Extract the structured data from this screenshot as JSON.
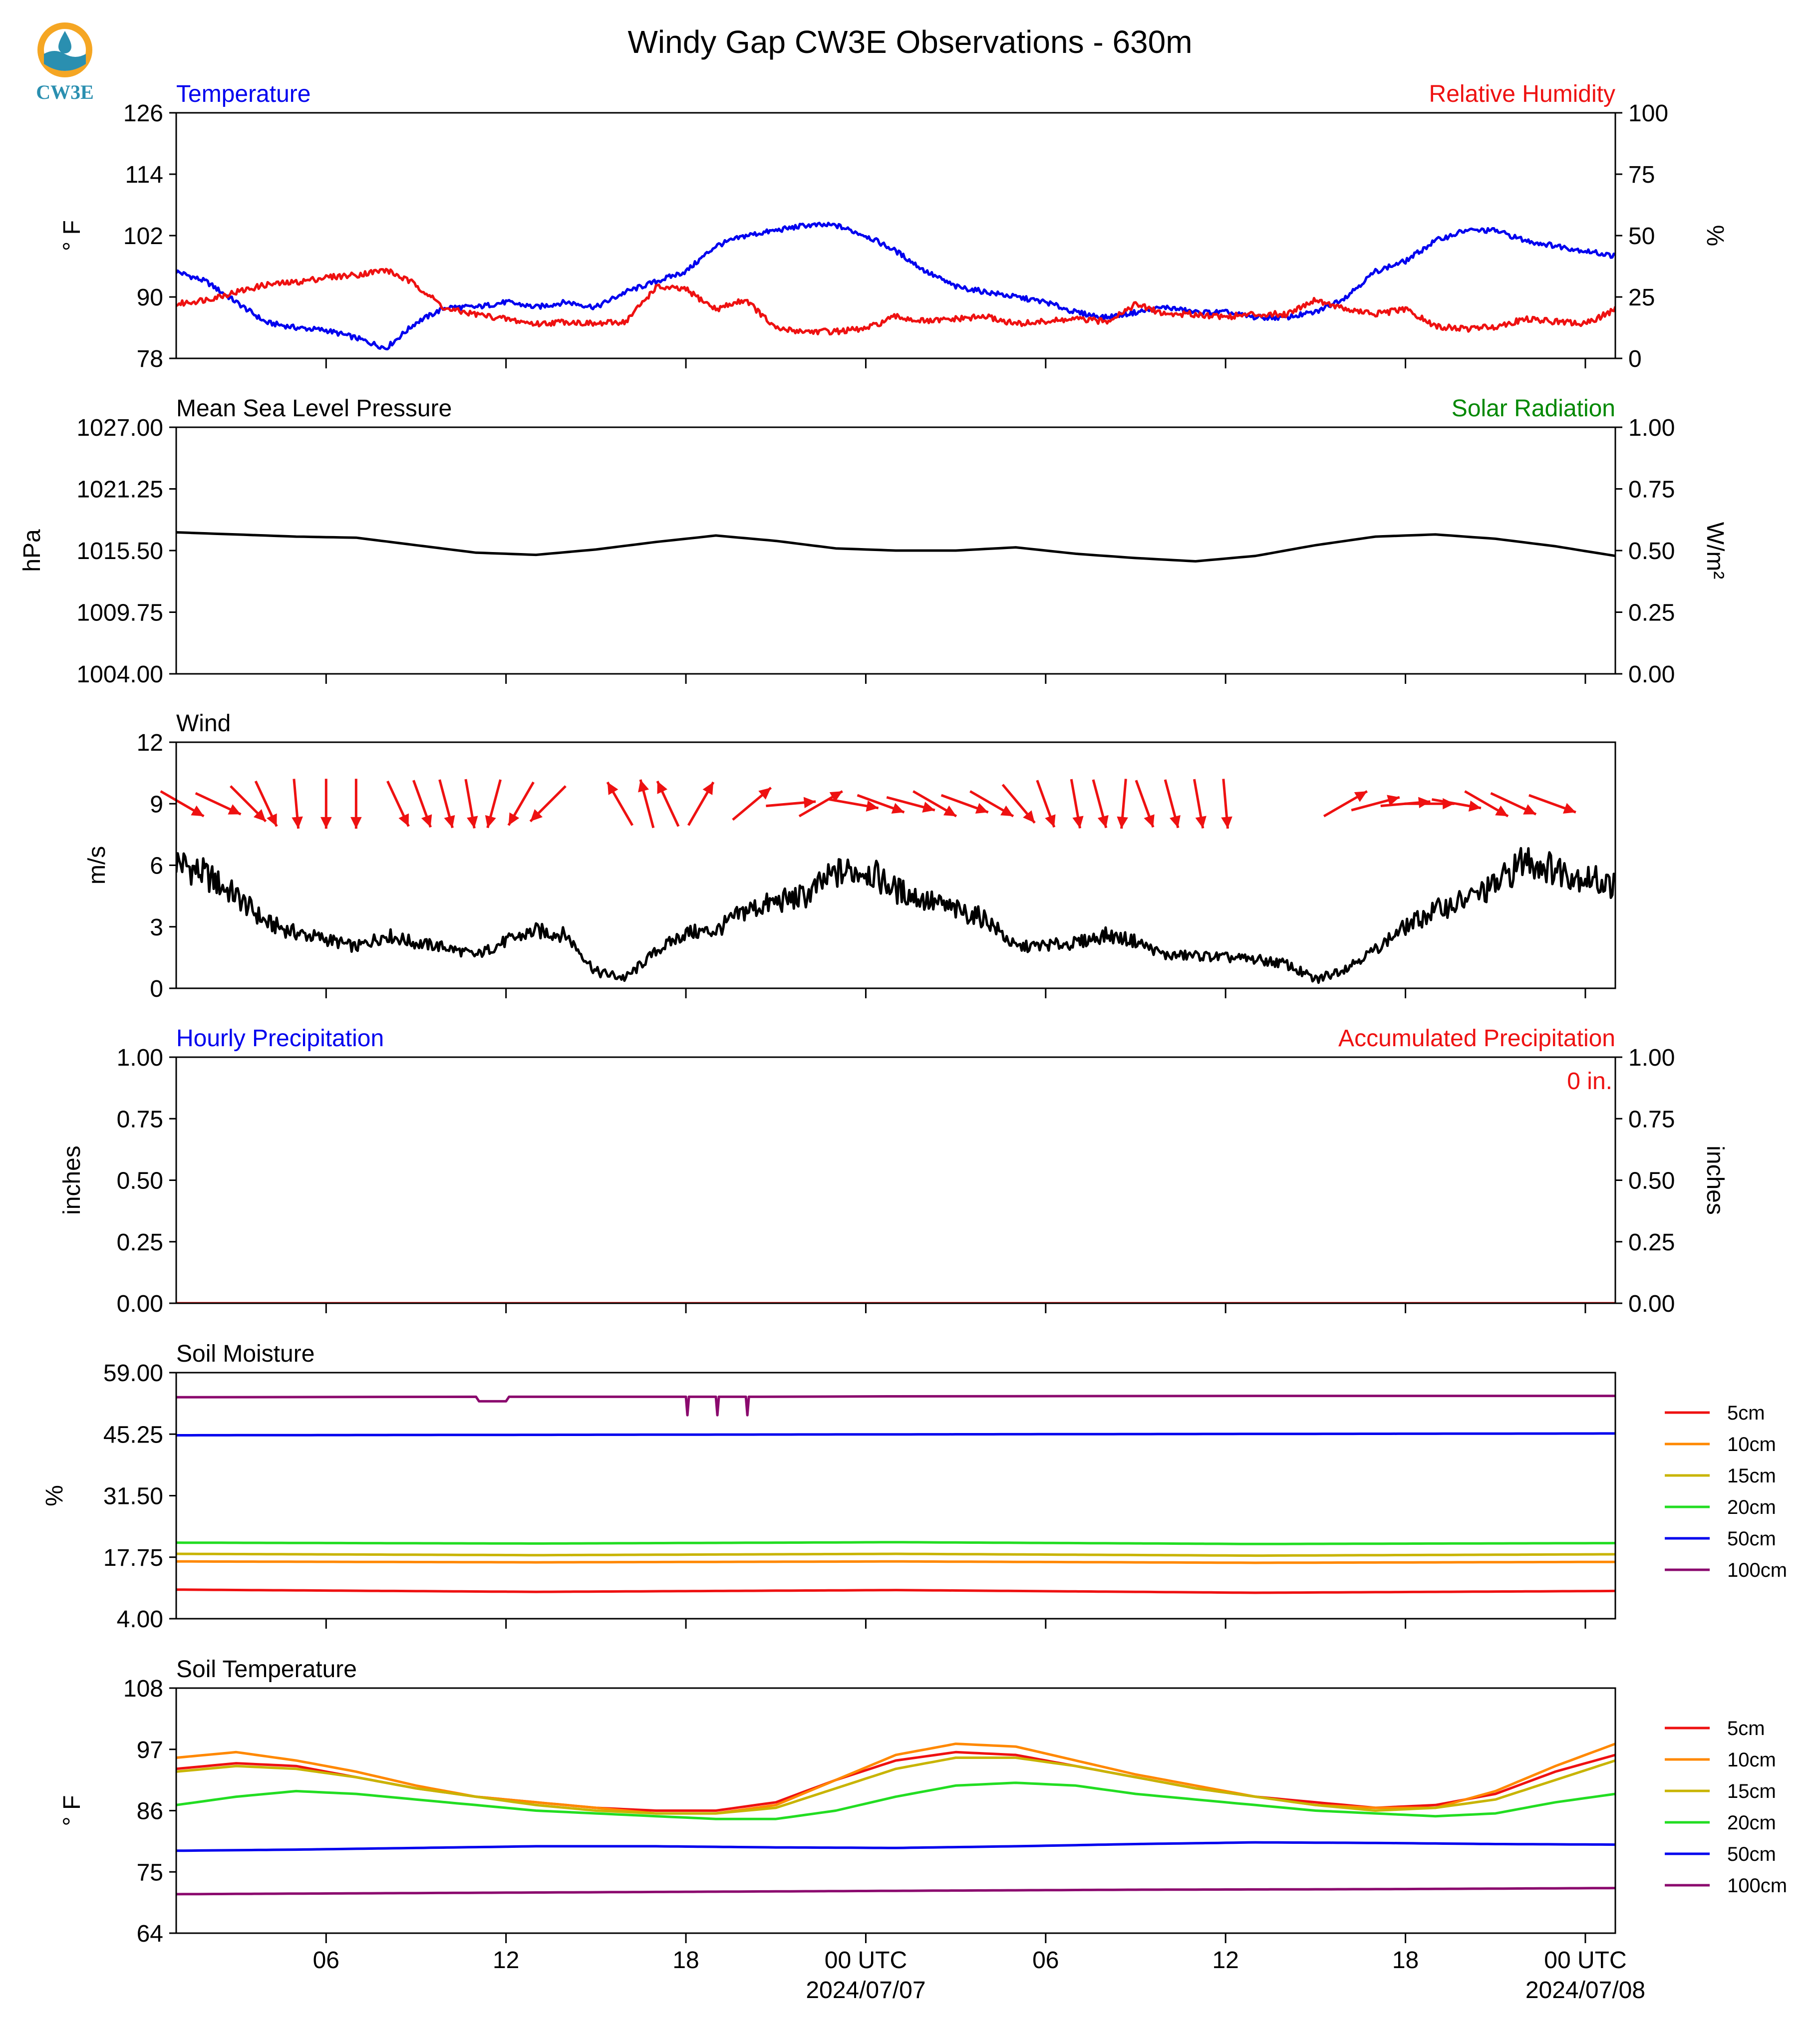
{
  "page_title": "Windy Gap CW3E Observations - 630m",
  "logo_text": "CW3E",
  "colors": {
    "blue": "#0000ee",
    "red": "#ee1111",
    "green": "#008800",
    "black": "#000000",
    "logo_teal": "#2a8fb0",
    "logo_orange": "#f5a623"
  },
  "x_axis": {
    "start_hour": 0,
    "end_hour": 48,
    "ticks": [
      {
        "hour": 5,
        "label": "06"
      },
      {
        "hour": 11,
        "label": "12"
      },
      {
        "hour": 17,
        "label": "18"
      },
      {
        "hour": 23,
        "label": "00 UTC",
        "sub": "2024/07/07"
      },
      {
        "hour": 29,
        "label": "06"
      },
      {
        "hour": 35,
        "label": "12"
      },
      {
        "hour": 41,
        "label": "18"
      },
      {
        "hour": 47,
        "label": "00 UTC",
        "sub": "2024/07/08"
      }
    ]
  },
  "chart_data": [
    {
      "type": "line",
      "title": "Temperature",
      "right_title": "Relative Humidity",
      "ylabel": "° F",
      "ylabel_right": "%",
      "ylim": [
        78,
        126
      ],
      "yticks": [
        "126",
        "114",
        "102",
        "90",
        "78"
      ],
      "ylim_right": [
        0,
        100
      ],
      "yticks_right": [
        "100",
        "75",
        "50",
        "25",
        "0"
      ],
      "series": [
        {
          "name": "Temperature",
          "color": "#0000ee",
          "axis": "left",
          "x": [
            0,
            1,
            2,
            3,
            4,
            5,
            6,
            7,
            8,
            9,
            10,
            11,
            12,
            13,
            14,
            15,
            16,
            17,
            18,
            19,
            20,
            21,
            22,
            23,
            24,
            25,
            26,
            27,
            28,
            29,
            30,
            31,
            32,
            33,
            34,
            35,
            36,
            37,
            38,
            39,
            40,
            41,
            42,
            43,
            44,
            45,
            46,
            47,
            48
          ],
          "y": [
            95,
            93,
            89,
            85,
            84,
            83.5,
            82,
            80,
            85,
            88,
            88,
            89,
            88,
            89,
            88,
            91,
            93,
            95,
            100,
            102,
            103,
            104,
            104,
            102,
            99,
            95,
            92,
            91,
            90,
            89,
            87,
            86,
            87,
            88,
            87,
            87,
            86,
            86,
            87,
            90,
            95,
            97,
            101,
            103,
            103,
            101,
            100,
            99,
            98
          ]
        },
        {
          "name": "Relative Humidity",
          "color": "#ee1111",
          "axis": "right",
          "x": [
            0,
            1,
            2,
            3,
            4,
            5,
            6,
            7,
            8,
            9,
            10,
            11,
            12,
            13,
            14,
            15,
            16,
            17,
            18,
            19,
            20,
            21,
            22,
            23,
            24,
            25,
            26,
            27,
            28,
            29,
            30,
            31,
            32,
            33,
            34,
            35,
            36,
            37,
            38,
            39,
            40,
            41,
            42,
            43,
            44,
            45,
            46,
            47,
            48
          ],
          "y": [
            22,
            24,
            27,
            30,
            31,
            33,
            34,
            36,
            30,
            20,
            18,
            16,
            14,
            15,
            14,
            15,
            29,
            28,
            20,
            24,
            12,
            11,
            11,
            12,
            17,
            15,
            16,
            17,
            14,
            15,
            16,
            15,
            22,
            18,
            18,
            17,
            18,
            18,
            24,
            20,
            18,
            20,
            13,
            12,
            13,
            16,
            15,
            14,
            20
          ]
        }
      ]
    },
    {
      "type": "line",
      "title": "Mean Sea Level Pressure",
      "right_title": "Solar Radiation",
      "ylabel": "hPa",
      "ylabel_right": "W/m²",
      "ylim": [
        1004,
        1027
      ],
      "yticks": [
        "1027.00",
        "1021.25",
        "1015.50",
        "1009.75",
        "1004.00"
      ],
      "ylim_right": [
        0,
        1
      ],
      "yticks_right": [
        "1.00",
        "0.75",
        "0.50",
        "0.25",
        "0.00"
      ],
      "series": [
        {
          "name": "Mean Sea Level Pressure",
          "color": "#000000",
          "axis": "left",
          "x": [
            0,
            2,
            4,
            6,
            8,
            10,
            12,
            14,
            16,
            18,
            20,
            22,
            24,
            26,
            28,
            30,
            32,
            34,
            36,
            38,
            40,
            42,
            44,
            46,
            48
          ],
          "y": [
            1017.2,
            1017.0,
            1016.8,
            1016.7,
            1016.0,
            1015.3,
            1015.1,
            1015.6,
            1016.3,
            1016.9,
            1016.4,
            1015.7,
            1015.5,
            1015.5,
            1015.8,
            1015.2,
            1014.8,
            1014.5,
            1015.0,
            1016.0,
            1016.8,
            1017.0,
            1016.6,
            1015.9,
            1015.0
          ]
        }
      ]
    },
    {
      "type": "line",
      "title": "Wind",
      "ylabel": "m/s",
      "ylim": [
        0,
        12
      ],
      "yticks": [
        "12",
        "9",
        "6",
        "3",
        "0"
      ],
      "series": [
        {
          "name": "Wind",
          "color": "#000000",
          "axis": "left",
          "x": [
            0,
            1,
            2,
            3,
            4,
            5,
            6,
            7,
            8,
            9,
            10,
            11,
            12,
            13,
            14,
            15,
            16,
            17,
            18,
            19,
            20,
            21,
            22,
            23,
            24,
            25,
            26,
            27,
            28,
            29,
            30,
            31,
            32,
            33,
            34,
            35,
            36,
            37,
            38,
            39,
            40,
            41,
            42,
            43,
            44,
            45,
            46,
            47,
            48
          ],
          "y": [
            6.2,
            5.5,
            4.5,
            3.2,
            2.7,
            2.4,
            2.0,
            2.6,
            2.2,
            2.0,
            1.6,
            2.3,
            2.8,
            2.6,
            0.8,
            0.5,
            1.8,
            2.7,
            2.8,
            3.8,
            4.2,
            4.5,
            5.6,
            5.8,
            4.8,
            4.3,
            3.8,
            3.4,
            2.0,
            2.1,
            2.2,
            2.6,
            2.3,
            1.6,
            1.6,
            1.5,
            1.4,
            1.2,
            0.4,
            1.0,
            1.9,
            3.0,
            3.8,
            4.3,
            5.0,
            6.3,
            5.8,
            5.4,
            5.0
          ]
        }
      ],
      "barbs": {
        "color": "#ee1111",
        "hours": [
          0.2,
          1.4,
          2.4,
          3.0,
          4.0,
          5.0,
          6.0,
          7.4,
          8.2,
          9.0,
          9.8,
          10.6,
          11.5,
          12.4,
          14.8,
          15.7,
          16.4,
          17.5,
          19.2,
          20.5,
          21.5,
          22.6,
          23.5,
          24.5,
          25.3,
          26.3,
          27.2,
          28.1,
          29.0,
          30.0,
          30.8,
          31.6,
          32.3,
          33.2,
          34.1,
          35.0,
          39.0,
          40.0,
          41.0,
          41.8,
          42.7,
          43.7,
          44.6,
          45.9
        ],
        "dir_deg": [
          300,
          295,
          315,
          335,
          355,
          360,
          360,
          335,
          340,
          345,
          350,
          15,
          30,
          45,
          150,
          165,
          155,
          210,
          230,
          265,
          240,
          280,
          290,
          285,
          300,
          290,
          300,
          320,
          340,
          350,
          345,
          5,
          340,
          345,
          350,
          355,
          240,
          255,
          265,
          270,
          280,
          300,
          295,
          290
        ],
        "speed": [
          9,
          9,
          9,
          9,
          9,
          9,
          9,
          9,
          9,
          9,
          9,
          9,
          9,
          9,
          9,
          9,
          9,
          9,
          9,
          9,
          9,
          9,
          9,
          9,
          9,
          9,
          9,
          9,
          9,
          9,
          9,
          9,
          9,
          9,
          9,
          9,
          9,
          9,
          9,
          9,
          9,
          9,
          9,
          9
        ]
      }
    },
    {
      "type": "line",
      "title": "Hourly Precipitation",
      "right_title": "Accumulated Precipitation",
      "annotation": "0 in.",
      "ylabel": "inches",
      "ylabel_right": "inches",
      "ylim": [
        0,
        1
      ],
      "yticks": [
        "1.00",
        "0.75",
        "0.50",
        "0.25",
        "0.00"
      ],
      "ylim_right": [
        0,
        1
      ],
      "yticks_right": [
        "1.00",
        "0.75",
        "0.50",
        "0.25",
        "0.00"
      ],
      "series": [
        {
          "name": "Accumulated Precipitation",
          "color": "#ee1111",
          "axis": "right",
          "x": [
            0,
            48
          ],
          "y": [
            0,
            0
          ]
        }
      ]
    },
    {
      "type": "line",
      "title": "Soil Moisture",
      "ylabel": "%",
      "ylim": [
        4,
        59
      ],
      "yticks": [
        "59.00",
        "45.25",
        "31.50",
        "17.75",
        "4.00"
      ],
      "legend": [
        "5cm",
        "10cm",
        "15cm",
        "20cm",
        "50cm",
        "100cm"
      ],
      "series": [
        {
          "name": "5cm",
          "color": "#ee1111",
          "x": [
            0,
            12,
            24,
            36,
            48
          ],
          "y": [
            10.5,
            10.0,
            10.4,
            9.8,
            10.2
          ]
        },
        {
          "name": "10cm",
          "color": "#ff8800",
          "x": [
            0,
            12,
            24,
            36,
            48
          ],
          "y": [
            16.8,
            16.6,
            16.8,
            16.5,
            16.7
          ]
        },
        {
          "name": "15cm",
          "color": "#c8b400",
          "x": [
            0,
            12,
            24,
            36,
            48
          ],
          "y": [
            18.5,
            18.2,
            18.5,
            18.1,
            18.4
          ]
        },
        {
          "name": "20cm",
          "color": "#22dd22",
          "x": [
            0,
            12,
            24,
            36,
            48
          ],
          "y": [
            21.0,
            20.8,
            21.1,
            20.7,
            20.9
          ]
        },
        {
          "name": "50cm",
          "color": "#0000ee",
          "x": [
            0,
            12,
            24,
            36,
            48
          ],
          "y": [
            45.0,
            45.1,
            45.2,
            45.3,
            45.4
          ]
        },
        {
          "name": "100cm",
          "color": "#8b0a6e",
          "x": [
            0,
            10.0,
            10.1,
            11.0,
            11.1,
            17.0,
            17.05,
            17.1,
            17.15,
            18.0,
            18.05,
            18.1,
            18.15,
            19.0,
            19.05,
            19.1,
            19.15,
            24,
            36,
            48
          ],
          "y": [
            53.5,
            53.6,
            52.6,
            52.6,
            53.6,
            53.6,
            49.5,
            53.6,
            53.6,
            53.6,
            49.5,
            53.6,
            53.6,
            53.6,
            49.5,
            53.6,
            53.6,
            53.7,
            53.8,
            53.8
          ]
        }
      ]
    },
    {
      "type": "line",
      "title": "Soil Temperature",
      "ylabel": "° F",
      "ylim": [
        64,
        108
      ],
      "yticks": [
        "108",
        "97",
        "86",
        "75",
        "64"
      ],
      "legend": [
        "5cm",
        "10cm",
        "15cm",
        "20cm",
        "50cm",
        "100cm"
      ],
      "series": [
        {
          "name": "5cm",
          "color": "#ee1111",
          "x": [
            0,
            2,
            4,
            6,
            8,
            10,
            12,
            14,
            16,
            18,
            20,
            22,
            24,
            26,
            28,
            30,
            32,
            34,
            36,
            38,
            40,
            42,
            44,
            46,
            48
          ],
          "y": [
            93.5,
            94.5,
            94,
            92,
            90,
            88.5,
            87.5,
            86.5,
            86,
            86,
            87.5,
            91.5,
            95,
            96.5,
            96,
            94,
            92,
            90,
            88.5,
            87.5,
            86.5,
            87,
            89,
            93,
            96
          ]
        },
        {
          "name": "10cm",
          "color": "#ff8800",
          "x": [
            0,
            2,
            4,
            6,
            8,
            10,
            12,
            14,
            16,
            18,
            20,
            22,
            24,
            26,
            28,
            30,
            32,
            34,
            36,
            38,
            40,
            42,
            44,
            46,
            48
          ],
          "y": [
            95.5,
            96.5,
            95,
            93,
            90.5,
            88.5,
            87.5,
            86.5,
            85.5,
            85.5,
            87,
            91.5,
            96,
            98,
            97.5,
            95,
            92.5,
            90.5,
            88.5,
            87,
            86.5,
            86.5,
            89.5,
            94,
            98
          ]
        },
        {
          "name": "15cm",
          "color": "#c8b400",
          "x": [
            0,
            2,
            4,
            6,
            8,
            10,
            12,
            14,
            16,
            18,
            20,
            22,
            24,
            26,
            28,
            30,
            32,
            34,
            36,
            38,
            40,
            42,
            44,
            46,
            48
          ],
          "y": [
            93,
            94,
            93.5,
            92,
            90,
            88.5,
            87,
            86,
            85.5,
            85.5,
            86.5,
            90,
            93.5,
            95.5,
            95.5,
            94,
            92,
            90,
            88.5,
            87,
            86,
            86.5,
            88,
            91.5,
            95
          ]
        },
        {
          "name": "20cm",
          "color": "#22dd22",
          "x": [
            0,
            2,
            4,
            6,
            8,
            10,
            12,
            14,
            16,
            18,
            20,
            22,
            24,
            26,
            28,
            30,
            32,
            34,
            36,
            38,
            40,
            42,
            44,
            46,
            48
          ],
          "y": [
            87,
            88.5,
            89.5,
            89,
            88,
            87,
            86,
            85.5,
            85,
            84.5,
            84.5,
            86,
            88.5,
            90.5,
            91,
            90.5,
            89,
            88,
            87,
            86,
            85.5,
            85,
            85.5,
            87.5,
            89
          ]
        },
        {
          "name": "50cm",
          "color": "#0000ee",
          "x": [
            0,
            4,
            8,
            12,
            16,
            20,
            24,
            28,
            32,
            36,
            40,
            44,
            48
          ],
          "y": [
            78.8,
            79,
            79.3,
            79.6,
            79.6,
            79.4,
            79.3,
            79.6,
            80,
            80.3,
            80.2,
            80,
            79.9
          ]
        },
        {
          "name": "100cm",
          "color": "#8b0a6e",
          "x": [
            0,
            8,
            16,
            24,
            32,
            40,
            48
          ],
          "y": [
            71,
            71.2,
            71.4,
            71.6,
            71.8,
            71.9,
            72.1
          ]
        }
      ]
    }
  ]
}
